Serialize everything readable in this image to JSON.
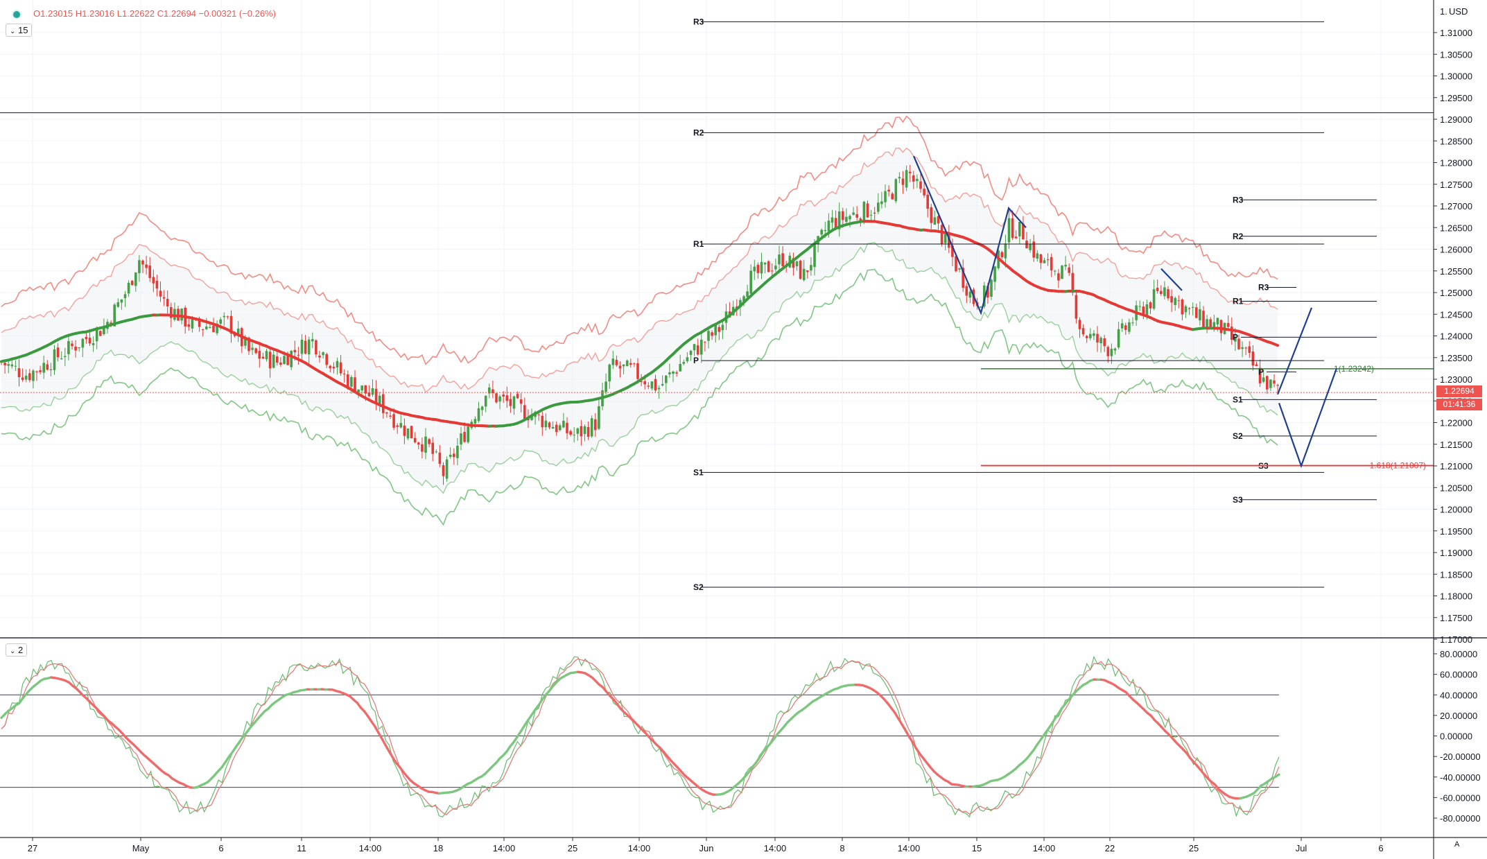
{
  "symbol_ohlc": {
    "open": "O1.23015",
    "high": "H1.23016",
    "low": "L1.22622",
    "close": "C1.22694",
    "change": "−0.00321 (−0.26%)"
  },
  "interval": "15",
  "sub_pane_label": "2",
  "currency": "USD",
  "axis_footer": "A",
  "price_axis": {
    "first_label": "1.",
    "ticks": [
      "1.31000",
      "1.30500",
      "1.30000",
      "1.29500",
      "1.29000",
      "1.28500",
      "1.28000",
      "1.27500",
      "1.27000",
      "1.26500",
      "1.26000",
      "1.25500",
      "1.25000",
      "1.24500",
      "1.24000",
      "1.23500",
      "1.23000",
      "1.22500",
      "1.22000",
      "1.21500",
      "1.21000",
      "1.20500",
      "1.20000",
      "1.19500",
      "1.19000",
      "1.18500",
      "1.18000",
      "1.17500",
      "1.17000"
    ],
    "last_price": "1.22694",
    "countdown": "01:41:36"
  },
  "osc_axis": {
    "ticks": [
      "80.00000",
      "60.00000",
      "40.00000",
      "20.00000",
      "0.00000",
      "-20.00000",
      "-40.00000",
      "-60.00000",
      "-80.00000"
    ]
  },
  "time_axis": {
    "labels": [
      "27",
      "May",
      "6",
      "11",
      "14:00",
      "18",
      "14:00",
      "25",
      "14:00",
      "Jun",
      "14:00",
      "8",
      "14:00",
      "15",
      "14:00",
      "22",
      "25",
      "Jul",
      "6"
    ]
  },
  "pivots": {
    "monthly": {
      "R3": "R3",
      "R2": "R2",
      "R1": "R1",
      "P": "P",
      "S1": "S1",
      "S2": "S2"
    },
    "weekly": {
      "R3": "R3",
      "R2": "R2",
      "R1": "R1",
      "P": "P",
      "S1": "S1",
      "S2": "S2",
      "S3": "S3"
    },
    "daily": {
      "R3": "R3",
      "P": "P",
      "S3": "S3"
    }
  },
  "fib_labels": {
    "level_1": "1(1.23242)",
    "level_1618": "1.618(1.21007)"
  },
  "colors": {
    "bull": "#43a047",
    "bear": "#e53935",
    "band_red": "#f28b82",
    "band_green": "#81c784",
    "pattern": "#1e3f8f",
    "pivot": "#131722",
    "last_price": "#ef5350"
  },
  "chart_data": [
    {
      "type": "candlestick",
      "title": "",
      "ylim": [
        1.17,
        1.315
      ],
      "x_range": [
        "Apr 27",
        "Jul 6"
      ],
      "notes": "15-minute candles with moving averages, envelope bands, pivot levels and a drawn AB=CD pattern; values read off the price axis"
    },
    {
      "type": "line",
      "title": "",
      "ylim": [
        -90,
        90
      ],
      "reference_lines": [
        40,
        0,
        -50
      ]
    }
  ]
}
